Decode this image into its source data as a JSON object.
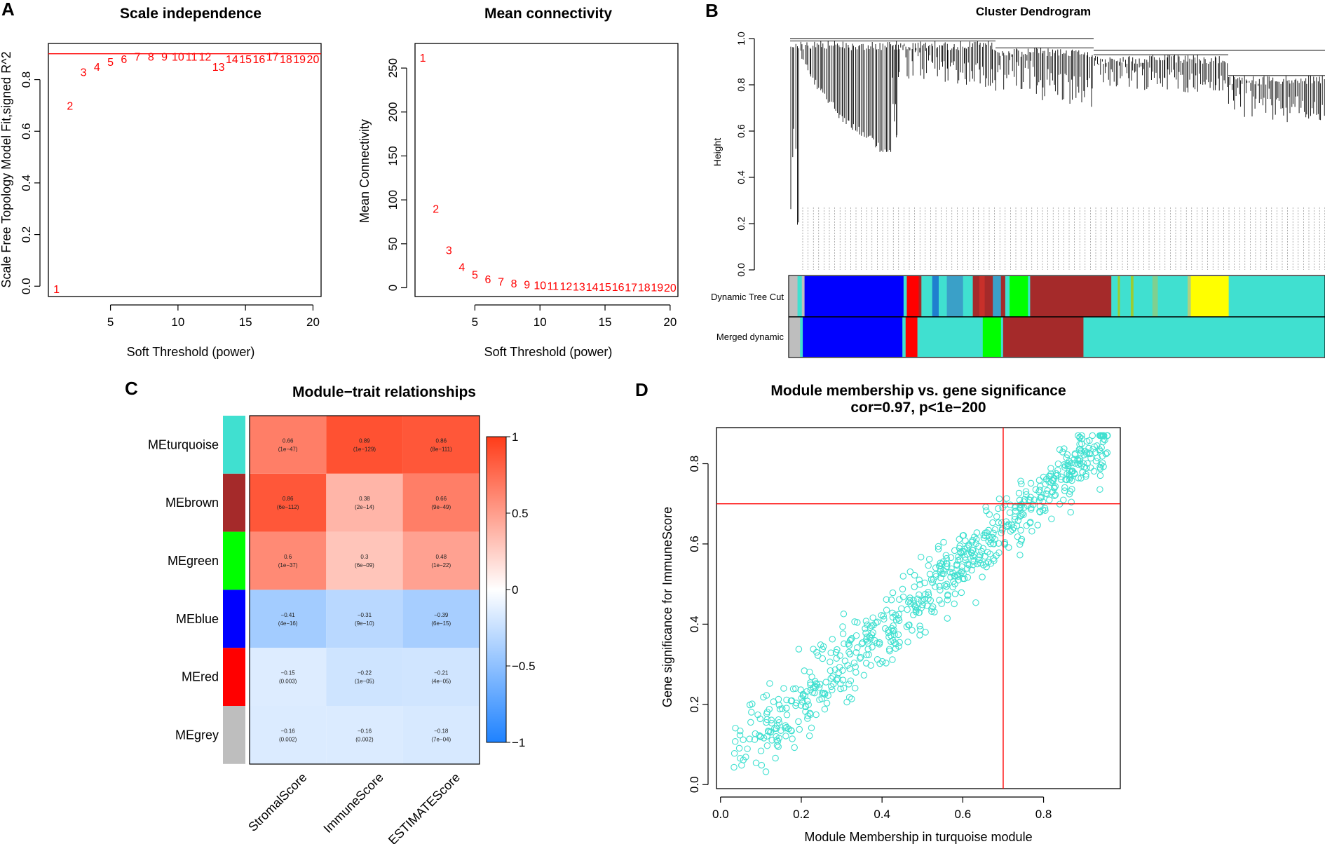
{
  "panels": {
    "A": "A",
    "B": "B",
    "C": "C",
    "D": "D"
  },
  "chart_data": [
    {
      "id": "scale_independence",
      "type": "scatter",
      "title": "Scale independence",
      "xlabel": "Soft Threshold (power)",
      "ylabel": "Scale Free Topology Model Fit,signed R^2",
      "xlim": [
        0.4,
        20.6
      ],
      "ylim": [
        -0.04,
        0.94
      ],
      "xticks": [
        5,
        10,
        15,
        20
      ],
      "yticks": [
        0.0,
        0.2,
        0.4,
        0.6,
        0.8
      ],
      "hline": 0.9,
      "hline_color": "#ff0000",
      "x": [
        1,
        2,
        3,
        4,
        5,
        6,
        7,
        8,
        9,
        10,
        11,
        12,
        13,
        14,
        15,
        16,
        17,
        18,
        19,
        20
      ],
      "y": [
        -0.01,
        0.7,
        0.83,
        0.85,
        0.87,
        0.88,
        0.89,
        0.89,
        0.89,
        0.89,
        0.89,
        0.89,
        0.85,
        0.88,
        0.88,
        0.88,
        0.89,
        0.88,
        0.88,
        0.88
      ],
      "labels": [
        "1",
        "2",
        "3",
        "4",
        "5",
        "6",
        "7",
        "8",
        "9",
        "10",
        "11",
        "12",
        "13",
        "14",
        "15",
        "16",
        "17",
        "18",
        "19",
        "20"
      ],
      "point_color": "#ff0000"
    },
    {
      "id": "mean_connectivity",
      "type": "scatter",
      "title": "Mean connectivity",
      "xlabel": "Soft Threshold (power)",
      "ylabel": "Mean Connectivity",
      "xlim": [
        0.4,
        20.6
      ],
      "ylim": [
        -10,
        278
      ],
      "xticks": [
        5,
        10,
        15,
        20
      ],
      "yticks": [
        0,
        50,
        100,
        150,
        200,
        250
      ],
      "x": [
        1,
        2,
        3,
        4,
        5,
        6,
        7,
        8,
        9,
        10,
        11,
        12,
        13,
        14,
        15,
        16,
        17,
        18,
        19,
        20
      ],
      "y": [
        262,
        90,
        43,
        24,
        15,
        10,
        7,
        5,
        4,
        3,
        2.5,
        2,
        1.5,
        1.3,
        1.1,
        1,
        0.8,
        0.7,
        0.6,
        0.5
      ],
      "labels": [
        "1",
        "2",
        "3",
        "4",
        "5",
        "6",
        "7",
        "8",
        "9",
        "10",
        "11",
        "12",
        "13",
        "14",
        "15",
        "16",
        "17",
        "18",
        "19",
        "20"
      ],
      "point_color": "#ff0000"
    },
    {
      "id": "cluster_dendrogram",
      "type": "dendrogram",
      "title": "Cluster Dendrogram",
      "ylabel": "Height",
      "ylim": [
        0,
        1
      ],
      "yticks": [
        0.0,
        0.2,
        0.4,
        0.6,
        0.8,
        1.0
      ],
      "row_labels": [
        "Dynamic Tree Cut",
        "Merged dynamic"
      ],
      "color_bar_1": [
        {
          "c": "#bebebe",
          "w": 1.5
        },
        {
          "c": "#40e0d0",
          "w": 0.8
        },
        {
          "c": "#bebebe",
          "w": 0.5
        },
        {
          "c": "#0000ff",
          "w": 18.3
        },
        {
          "c": "#40e0d0",
          "w": 0.6
        },
        {
          "c": "#ff0000",
          "w": 2.2
        },
        {
          "c": "#a52a2a",
          "w": 0.5
        },
        {
          "c": "#40e0d0",
          "w": 2.0
        },
        {
          "c": "#1f7fcf",
          "w": 1.2
        },
        {
          "c": "#40e0d0",
          "w": 1.5
        },
        {
          "c": "#3aa0c8",
          "w": 3.0
        },
        {
          "c": "#40e0d0",
          "w": 1.8
        },
        {
          "c": "#a52a2a",
          "w": 1.2
        },
        {
          "c": "#c8302a",
          "w": 1.0
        },
        {
          "c": "#a52a2a",
          "w": 1.5
        },
        {
          "c": "#3aa0c8",
          "w": 1.5
        },
        {
          "c": "#a52a2a",
          "w": 0.8
        },
        {
          "c": "#40e0d0",
          "w": 0.8
        },
        {
          "c": "#00ff00",
          "w": 3.4
        },
        {
          "c": "#40e0d0",
          "w": 0.4
        },
        {
          "c": "#a52a2a",
          "w": 15.0
        },
        {
          "c": "#40e0d0",
          "w": 1.2
        },
        {
          "c": "#9acd32",
          "w": 0.4
        },
        {
          "c": "#40e0d0",
          "w": 2.0
        },
        {
          "c": "#9acd32",
          "w": 0.5
        },
        {
          "c": "#40e0d0",
          "w": 3.5
        },
        {
          "c": "#7fd090",
          "w": 1.0
        },
        {
          "c": "#40e0d0",
          "w": 5.5
        },
        {
          "c": "#b0d080",
          "w": 0.6
        },
        {
          "c": "#ffff00",
          "w": 7.0
        },
        {
          "c": "#40e0d0",
          "w": 17.8
        }
      ],
      "color_bar_2": [
        {
          "c": "#bebebe",
          "w": 2.0
        },
        {
          "c": "#40e0d0",
          "w": 0.5
        },
        {
          "c": "#0000ff",
          "w": 18.6
        },
        {
          "c": "#40e0d0",
          "w": 0.6
        },
        {
          "c": "#ff0000",
          "w": 2.2
        },
        {
          "c": "#40e0d0",
          "w": 12.2
        },
        {
          "c": "#00ff00",
          "w": 3.4
        },
        {
          "c": "#40e0d0",
          "w": 0.4
        },
        {
          "c": "#a52a2a",
          "w": 15.0
        },
        {
          "c": "#40e0d0",
          "w": 45.1
        }
      ]
    },
    {
      "id": "module_trait",
      "type": "heatmap",
      "title": "Module−trait relationships",
      "rows": [
        "MEturquoise",
        "MEbrown",
        "MEgreen",
        "MEblue",
        "MEred",
        "MEgrey"
      ],
      "row_colors": [
        "#40e0d0",
        "#a52a2a",
        "#00ff00",
        "#0000ff",
        "#ff0000",
        "#bebebe"
      ],
      "columns": [
        "StromalScore",
        "ImmuneScore",
        "ESTIMATEScore"
      ],
      "values": [
        [
          0.66,
          0.89,
          0.86
        ],
        [
          0.86,
          0.38,
          0.66
        ],
        [
          0.6,
          0.3,
          0.48
        ],
        [
          -0.41,
          -0.31,
          -0.39
        ],
        [
          -0.15,
          -0.22,
          -0.21
        ],
        [
          -0.16,
          -0.16,
          -0.18
        ]
      ],
      "value_labels": [
        [
          "0.66",
          "0.89",
          "0.86"
        ],
        [
          "0.86",
          "0.38",
          "0.66"
        ],
        [
          "0.6",
          "0.3",
          "0.48"
        ],
        [
          "−0.41",
          "−0.31",
          "−0.39"
        ],
        [
          "−0.15",
          "−0.22",
          "−0.21"
        ],
        [
          "−0.16",
          "−0.16",
          "−0.18"
        ]
      ],
      "pvalues": [
        [
          "(1e−47)",
          "(1e−129)",
          "(8e−111)"
        ],
        [
          "(6e−112)",
          "(2e−14)",
          "(9e−49)"
        ],
        [
          "(1e−37)",
          "(6e−09)",
          "(1e−22)"
        ],
        [
          "(4e−16)",
          "(9e−10)",
          "(6e−15)"
        ],
        [
          "(0.003)",
          "(1e−05)",
          "(4e−05)"
        ],
        [
          "(0.002)",
          "(0.002)",
          "(7e−04)"
        ]
      ],
      "colorbar_ticks": [
        1,
        0.5,
        0,
        -0.5,
        -1
      ],
      "colorbar_tick_labels": [
        "1",
        "0.5",
        "0",
        "−0.5",
        "−1"
      ],
      "colorbar_range": [
        -1,
        1
      ]
    },
    {
      "id": "mm_vs_gs",
      "type": "scatter",
      "title": "Module membership vs. gene significance",
      "subtitle": "cor=0.97, p<1e−200",
      "xlabel": "Module Membership in turquoise module",
      "ylabel": "Gene significance for  ImmuneScore",
      "xlim": [
        -0.01,
        0.99
      ],
      "ylim": [
        -0.01,
        0.89
      ],
      "xticks": [
        0.0,
        0.2,
        0.4,
        0.6,
        0.8
      ],
      "yticks": [
        0.0,
        0.2,
        0.4,
        0.6,
        0.8
      ],
      "vline": 0.7,
      "hline": 0.7,
      "line_color": "#ff0000",
      "point_color": "#40e0d0",
      "n_points": 700,
      "trend": {
        "slope": 0.86,
        "intercept": 0.035
      },
      "x_range": [
        0.03,
        0.96
      ],
      "residual_sd": 0.045
    }
  ],
  "tick_format": {
    "A1_y": [
      "0.0",
      "0.2",
      "0.4",
      "0.6",
      "0.8"
    ],
    "A1_x": [
      "5",
      "10",
      "15",
      "20"
    ],
    "A2_y": [
      "0",
      "50",
      "100",
      "150",
      "200",
      "250"
    ],
    "A2_x": [
      "5",
      "10",
      "15",
      "20"
    ],
    "B_y": [
      "0.0",
      "0.2",
      "0.4",
      "0.6",
      "0.8",
      "1.0"
    ],
    "D_x": [
      "0.0",
      "0.2",
      "0.4",
      "0.6",
      "0.8"
    ],
    "D_y": [
      "0.0",
      "0.2",
      "0.4",
      "0.6",
      "0.8"
    ]
  }
}
